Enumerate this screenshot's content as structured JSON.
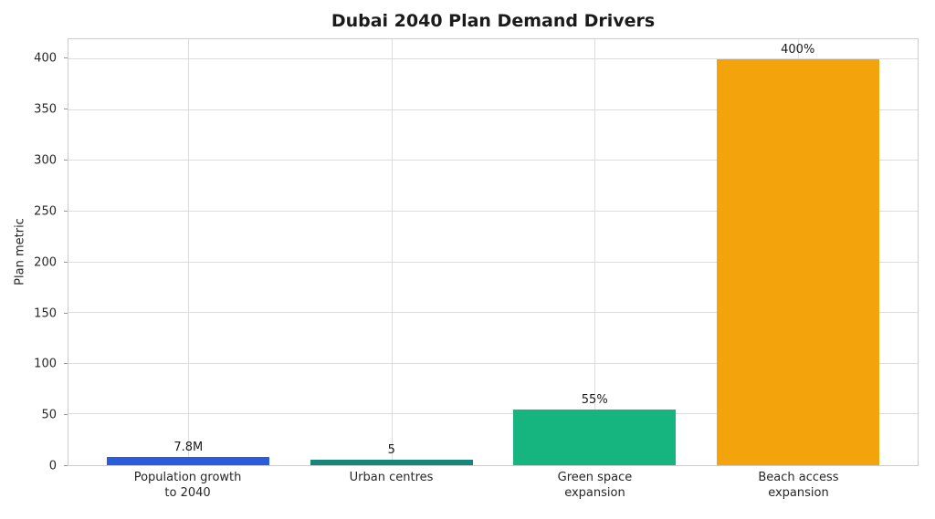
{
  "figure": {
    "background": "#ffffff"
  },
  "chart_data": {
    "type": "bar",
    "title": "Dubai 2040 Plan Demand Drivers",
    "xlabel": "",
    "ylabel": "Plan metric",
    "categories": [
      "Population growth\nto 2040",
      "Urban centres",
      "Green space\nexpansion",
      "Beach access\nexpansion"
    ],
    "values": [
      7.8,
      5,
      55,
      400
    ],
    "bar_labels": [
      "7.8M",
      "5",
      "55%",
      "400%"
    ],
    "bar_colors": [
      "#2A5CDB",
      "#17857C",
      "#16B47E",
      "#F3A40D"
    ],
    "yticks": [
      0,
      50,
      100,
      150,
      200,
      250,
      300,
      350,
      400
    ],
    "ylim": [
      0,
      420
    ],
    "grid": true,
    "grid_color": "#dcdcdc",
    "spine_color": "#cccccc",
    "tick_label_color": "#262626",
    "title_color": "#1a1a1a",
    "legend": "none",
    "bar_width_frac": 0.8
  }
}
